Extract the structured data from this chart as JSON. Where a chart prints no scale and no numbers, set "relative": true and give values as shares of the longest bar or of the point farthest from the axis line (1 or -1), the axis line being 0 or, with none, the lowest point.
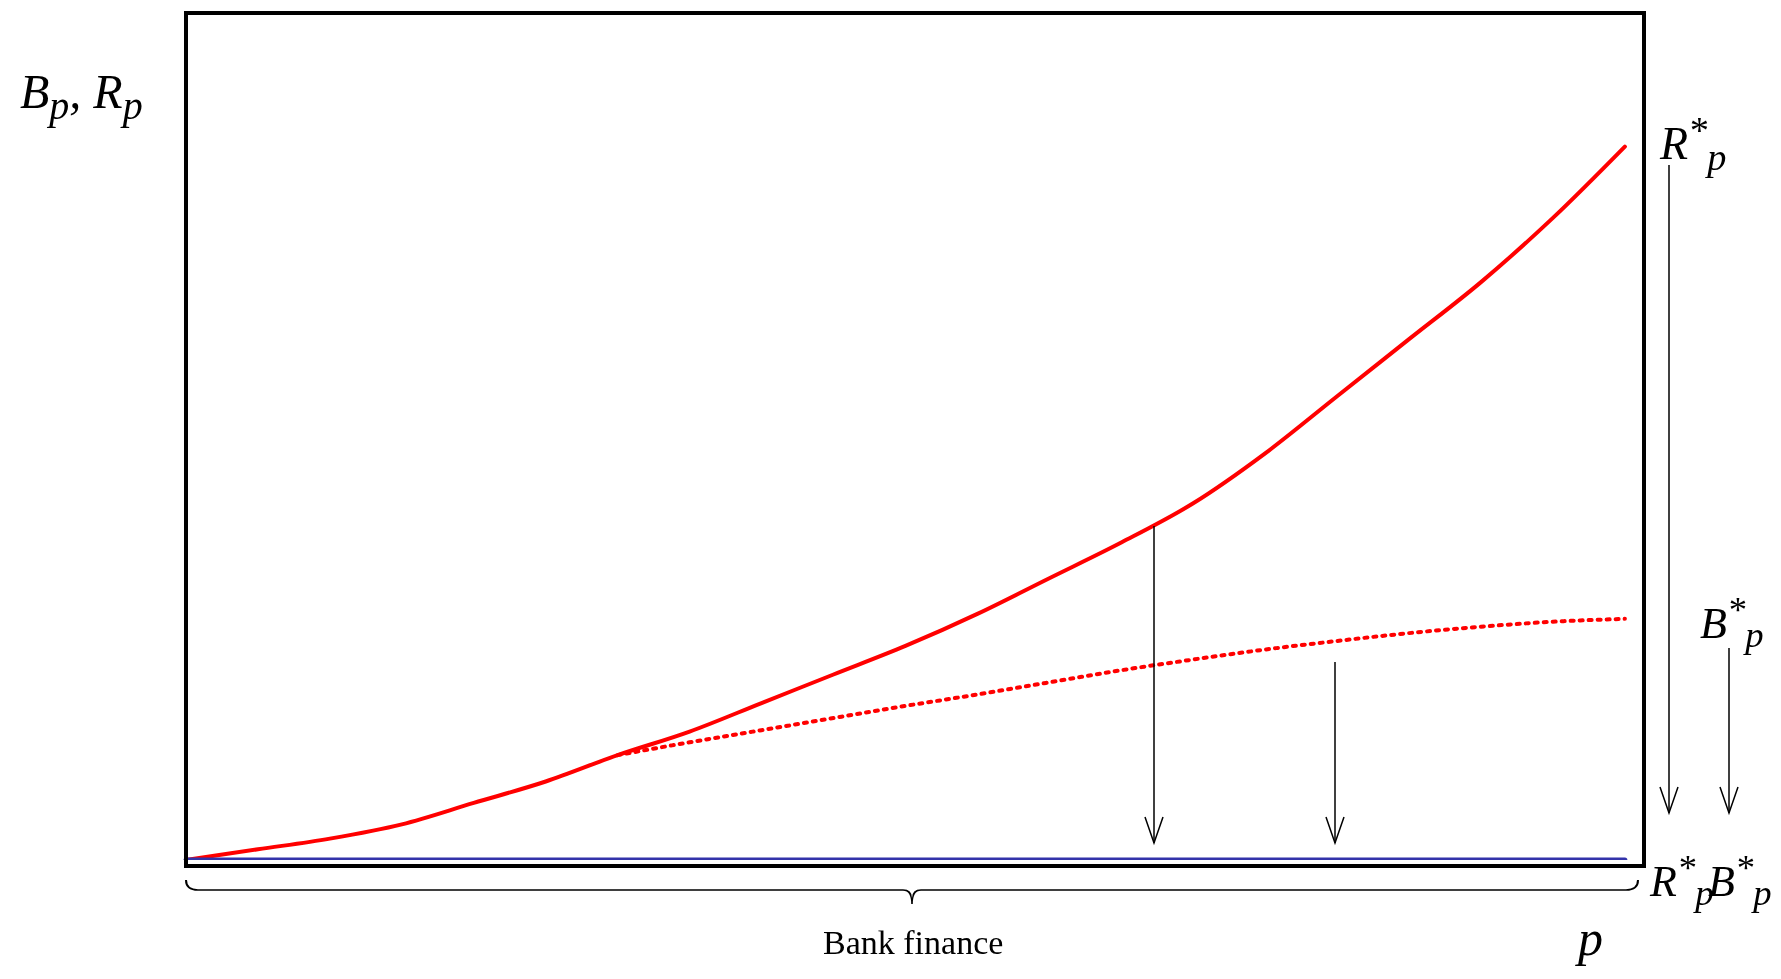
{
  "chart_data": {
    "type": "line",
    "relative": true,
    "legend": false,
    "grid": false,
    "xlabel": "p",
    "ylabel": "B$_{p}$, R$_{p}$",
    "categories": [
      null,
      null,
      null,
      null,
      null,
      null,
      null,
      null,
      null,
      null,
      null,
      null,
      null,
      null,
      null,
      null,
      null,
      null,
      null,
      null,
      null
    ],
    "series": [
      {
        "color": "#ff0000",
        "line_style": "solid",
        "values": [
          0,
          0.015,
          0.03,
          0.05,
          0.08,
          0.11,
          0.147,
          0.18,
          0.22,
          0.26,
          0.3,
          0.345,
          0.395,
          0.445,
          0.5,
          0.57,
          0.65,
          0.73,
          0.81,
          0.9,
          1.0
        ]
      },
      {
        "color": "#ff0000",
        "line_style": "dotted",
        "values": [
          null,
          null,
          null,
          null,
          null,
          null,
          0.147,
          0.165,
          0.182,
          0.199,
          0.216,
          0.232,
          0.249,
          0.266,
          0.281,
          0.295,
          0.307,
          0.318,
          0.327,
          0.334,
          0.338
        ]
      },
      {
        "color": "#3333aa",
        "line_style": "solid",
        "values": [
          0,
          0,
          0,
          0,
          0,
          0,
          0,
          0,
          0,
          0,
          0,
          0,
          0,
          0,
          0,
          0,
          0,
          0,
          0,
          0,
          0
        ]
      }
    ],
    "annotations": [
      "R$^{*}$$_{p}$",
      "B$^{*}$$_{p}$",
      "R$^{*}$$_{p}$",
      "B$^{*}$$_{p}$",
      "Bank finance"
    ]
  }
}
